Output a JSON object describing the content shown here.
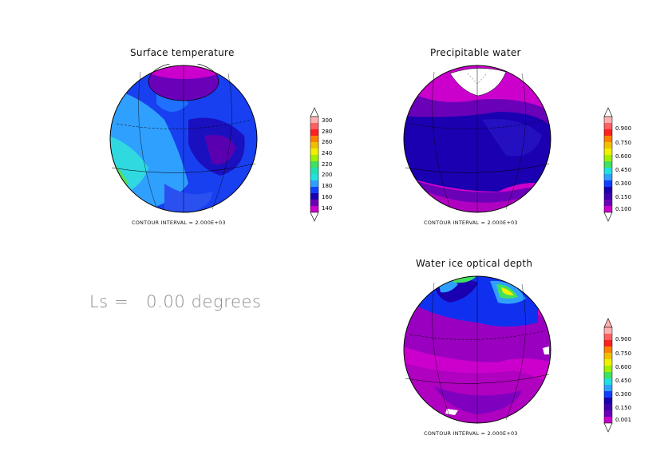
{
  "panels": [
    {
      "title": "Surface temperature",
      "contour_note": "CONTOUR INTERVAL = 2.000E+03",
      "colorbar_labels": [
        "300",
        "280",
        "260",
        "240",
        "220",
        "200",
        "180",
        "160",
        "140"
      ]
    },
    {
      "title": "Precipitable water",
      "contour_note": "CONTOUR INTERVAL = 2.000E+03",
      "colorbar_labels": [
        "0.900",
        "0.750",
        "0.600",
        "0.450",
        "0.300",
        "0.150",
        "0.100"
      ]
    },
    {
      "title": "Water ice optical depth",
      "contour_note": "CONTOUR INTERVAL = 2.000E+03",
      "colorbar_labels": [
        "0.900",
        "0.750",
        "0.600",
        "0.450",
        "0.300",
        "0.150",
        "0.001"
      ]
    }
  ],
  "ls_label": "Ls =   0.00 degrees",
  "colors": {
    "magenta": "#cc00cc",
    "purple": "#6a00b8",
    "dark_blue": "#1a00b0",
    "blue": "#1030f0",
    "light_blue": "#30a0ff",
    "cyan": "#20e0e0",
    "green": "#40e060",
    "yellow": "#f0f000",
    "red": "#ff2020",
    "pink": "#ffb0b0"
  }
}
